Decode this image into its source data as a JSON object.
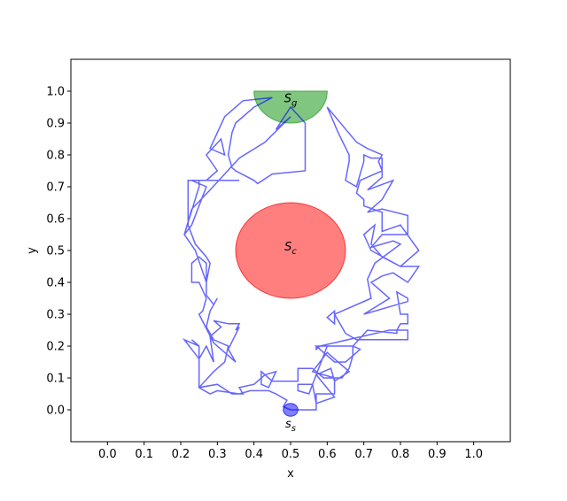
{
  "chart_data": {
    "type": "line",
    "xlabel": "x",
    "ylabel": "y",
    "xlim": [
      -0.1,
      1.1
    ],
    "ylim": [
      -0.1,
      1.1
    ],
    "xticks": [
      0.0,
      0.1,
      0.2,
      0.3,
      0.4,
      0.5,
      0.6,
      0.7,
      0.8,
      0.9,
      1.0
    ],
    "xtick_labels": [
      "0.0",
      "0.1",
      "0.2",
      "0.3",
      "0.4",
      "0.5",
      "0.6",
      "0.7",
      "0.8",
      "0.9",
      "1.0"
    ],
    "yticks": [
      0.0,
      0.1,
      0.2,
      0.3,
      0.4,
      0.5,
      0.6,
      0.7,
      0.8,
      0.9,
      1.0
    ],
    "ytick_labels": [
      "0.0",
      "0.1",
      "0.2",
      "0.3",
      "0.4",
      "0.5",
      "0.6",
      "0.7",
      "0.8",
      "0.9",
      "1.0"
    ],
    "grid": false,
    "shapes": [
      {
        "kind": "half-disc",
        "center": [
          0.5,
          1.0
        ],
        "radius": 0.1,
        "color": "#2ca02c",
        "opacity": 0.6,
        "label": "S_g"
      },
      {
        "kind": "circle",
        "center": [
          0.5,
          0.5
        ],
        "radius": 0.15,
        "color": "#ff0000",
        "opacity": 0.5,
        "label": "S_c"
      },
      {
        "kind": "circle",
        "center": [
          0.5,
          0.0
        ],
        "radius": 0.02,
        "color": "#0000ff",
        "opacity": 0.5,
        "label": "s_s"
      }
    ],
    "series": [
      {
        "color": "#0000ff",
        "opacity": 0.6,
        "points": [
          [
            0.5,
            0.0
          ],
          [
            0.57,
            0.0
          ],
          [
            0.57,
            0.05
          ],
          [
            0.62,
            0.05
          ],
          [
            0.62,
            0.1
          ],
          [
            0.56,
            0.12
          ],
          [
            0.6,
            0.18
          ],
          [
            0.62,
            0.16
          ],
          [
            0.66,
            0.12
          ],
          [
            0.62,
            0.09
          ],
          [
            0.61,
            0.13
          ],
          [
            0.57,
            0.11
          ],
          [
            0.62,
            0.04
          ],
          [
            0.57,
            0.02
          ],
          [
            0.56,
            0.08
          ],
          [
            0.52,
            0.08
          ],
          [
            0.52,
            0.06
          ],
          [
            0.55,
            0.05
          ],
          [
            0.6,
            0.2
          ],
          [
            0.57,
            0.2
          ],
          [
            0.57,
            0.19
          ],
          [
            0.58,
            0.2
          ],
          [
            0.77,
            0.25
          ],
          [
            0.82,
            0.25
          ],
          [
            0.82,
            0.22
          ],
          [
            0.68,
            0.22
          ],
          [
            0.65,
            0.24
          ],
          [
            0.62,
            0.3
          ],
          [
            0.62,
            0.27
          ],
          [
            0.6,
            0.29
          ],
          [
            0.62,
            0.31
          ],
          [
            0.62,
            0.3
          ],
          [
            0.72,
            0.35
          ],
          [
            0.71,
            0.41
          ],
          [
            0.73,
            0.46
          ],
          [
            0.8,
            0.52
          ],
          [
            0.78,
            0.53
          ],
          [
            0.72,
            0.51
          ],
          [
            0.75,
            0.55
          ],
          [
            0.82,
            0.55
          ],
          [
            0.82,
            0.61
          ],
          [
            0.75,
            0.63
          ],
          [
            0.71,
            0.62
          ],
          [
            0.75,
            0.66
          ],
          [
            0.78,
            0.72
          ],
          [
            0.71,
            0.69
          ],
          [
            0.75,
            0.73
          ],
          [
            0.75,
            0.79
          ],
          [
            0.72,
            0.79
          ],
          [
            0.7,
            0.8
          ],
          [
            0.7,
            0.78
          ],
          [
            0.68,
            0.7
          ],
          [
            0.65,
            0.72
          ],
          [
            0.66,
            0.78
          ],
          [
            0.66,
            0.8
          ],
          [
            0.63,
            0.87
          ],
          [
            0.6,
            0.95
          ],
          [
            0.68,
            0.84
          ],
          [
            0.71,
            0.82
          ],
          [
            0.75,
            0.8
          ],
          [
            0.74,
            0.78
          ],
          [
            0.75,
            0.75
          ],
          [
            0.69,
            0.72
          ],
          [
            0.68,
            0.68
          ],
          [
            0.7,
            0.66
          ],
          [
            0.7,
            0.64
          ],
          [
            0.75,
            0.62
          ],
          [
            0.75,
            0.56
          ],
          [
            0.8,
            0.58
          ],
          [
            0.85,
            0.5
          ],
          [
            0.8,
            0.45
          ],
          [
            0.72,
            0.5
          ],
          [
            0.7,
            0.55
          ],
          [
            0.73,
            0.58
          ],
          [
            0.72,
            0.52
          ],
          [
            0.75,
            0.48
          ],
          [
            0.8,
            0.45
          ],
          [
            0.85,
            0.45
          ],
          [
            0.82,
            0.4
          ],
          [
            0.78,
            0.43
          ],
          [
            0.75,
            0.42
          ],
          [
            0.72,
            0.4
          ],
          [
            0.77,
            0.35
          ],
          [
            0.7,
            0.3
          ],
          [
            0.79,
            0.33
          ],
          [
            0.82,
            0.34
          ],
          [
            0.82,
            0.35
          ],
          [
            0.79,
            0.37
          ],
          [
            0.8,
            0.3
          ],
          [
            0.82,
            0.3
          ],
          [
            0.82,
            0.27
          ],
          [
            0.8,
            0.27
          ],
          [
            0.79,
            0.25
          ],
          [
            0.79,
            0.24
          ],
          [
            0.71,
            0.25
          ],
          [
            0.67,
            0.2
          ],
          [
            0.67,
            0.17
          ],
          [
            0.69,
            0.19
          ],
          [
            0.67,
            0.2
          ],
          [
            0.57,
            0.2
          ],
          [
            0.59,
            0.18
          ],
          [
            0.62,
            0.15
          ],
          [
            0.65,
            0.15
          ],
          [
            0.67,
            0.17
          ],
          [
            0.66,
            0.13
          ],
          [
            0.64,
            0.1
          ],
          [
            0.59,
            0.1
          ],
          [
            0.56,
            0.13
          ],
          [
            0.52,
            0.13
          ],
          [
            0.52,
            0.09
          ],
          [
            0.45,
            0.09
          ],
          [
            0.42,
            0.12
          ],
          [
            0.42,
            0.08
          ],
          [
            0.44,
            0.07
          ],
          [
            0.46,
            0.12
          ],
          [
            0.43,
            0.11
          ],
          [
            0.4,
            0.08
          ],
          [
            0.36,
            0.07
          ],
          [
            0.37,
            0.05
          ],
          [
            0.34,
            0.05
          ],
          [
            0.3,
            0.08
          ],
          [
            0.25,
            0.07
          ],
          [
            0.25,
            0.2
          ],
          [
            0.23,
            0.22
          ],
          [
            0.25,
            0.2
          ],
          [
            0.21,
            0.22
          ],
          [
            0.25,
            0.16
          ],
          [
            0.27,
            0.2
          ],
          [
            0.29,
            0.15
          ],
          [
            0.28,
            0.23
          ],
          [
            0.31,
            0.26
          ],
          [
            0.29,
            0.28
          ],
          [
            0.33,
            0.27
          ],
          [
            0.36,
            0.27
          ],
          [
            0.35,
            0.25
          ],
          [
            0.36,
            0.26
          ],
          [
            0.33,
            0.19
          ],
          [
            0.35,
            0.15
          ],
          [
            0.29,
            0.21
          ],
          [
            0.25,
            0.3
          ],
          [
            0.26,
            0.31
          ],
          [
            0.27,
            0.35
          ],
          [
            0.25,
            0.4
          ],
          [
            0.23,
            0.4
          ],
          [
            0.23,
            0.46
          ],
          [
            0.25,
            0.48
          ],
          [
            0.27,
            0.46
          ],
          [
            0.27,
            0.4
          ],
          [
            0.24,
            0.5
          ],
          [
            0.21,
            0.55
          ],
          [
            0.23,
            0.58
          ],
          [
            0.27,
            0.7
          ],
          [
            0.23,
            0.72
          ],
          [
            0.25,
            0.72
          ],
          [
            0.33,
            0.72
          ],
          [
            0.36,
            0.72
          ],
          [
            0.27,
            0.72
          ],
          [
            0.3,
            0.75
          ],
          [
            0.27,
            0.8
          ],
          [
            0.31,
            0.85
          ],
          [
            0.32,
            0.8
          ],
          [
            0.28,
            0.82
          ],
          [
            0.32,
            0.92
          ],
          [
            0.37,
            0.97
          ],
          [
            0.45,
            0.98
          ],
          [
            0.4,
            0.95
          ],
          [
            0.35,
            0.9
          ],
          [
            0.34,
            0.87
          ],
          [
            0.33,
            0.8
          ],
          [
            0.34,
            0.76
          ],
          [
            0.35,
            0.75
          ],
          [
            0.4,
            0.72
          ],
          [
            0.41,
            0.71
          ],
          [
            0.45,
            0.74
          ],
          [
            0.54,
            0.75
          ],
          [
            0.54,
            0.9
          ],
          [
            0.5,
            0.95
          ],
          [
            0.46,
            0.88
          ],
          [
            0.5,
            0.92
          ],
          [
            0.43,
            0.84
          ],
          [
            0.36,
            0.79
          ],
          [
            0.28,
            0.69
          ],
          [
            0.23,
            0.63
          ],
          [
            0.21,
            0.55
          ],
          [
            0.25,
            0.7
          ],
          [
            0.25,
            0.72
          ],
          [
            0.22,
            0.72
          ],
          [
            0.22,
            0.58
          ],
          [
            0.24,
            0.52
          ],
          [
            0.27,
            0.48
          ],
          [
            0.28,
            0.46
          ],
          [
            0.27,
            0.4
          ],
          [
            0.27,
            0.36
          ],
          [
            0.29,
            0.33
          ],
          [
            0.3,
            0.35
          ],
          [
            0.28,
            0.31
          ],
          [
            0.27,
            0.26
          ],
          [
            0.29,
            0.22
          ],
          [
            0.33,
            0.2
          ],
          [
            0.32,
            0.15
          ],
          [
            0.29,
            0.12
          ],
          [
            0.25,
            0.07
          ],
          [
            0.28,
            0.05
          ],
          [
            0.3,
            0.06
          ],
          [
            0.36,
            0.05
          ],
          [
            0.39,
            0.06
          ],
          [
            0.44,
            0.06
          ],
          [
            0.46,
            0.05
          ],
          [
            0.49,
            0.03
          ],
          [
            0.48,
            0.01
          ],
          [
            0.5,
            0.0
          ]
        ]
      }
    ]
  }
}
